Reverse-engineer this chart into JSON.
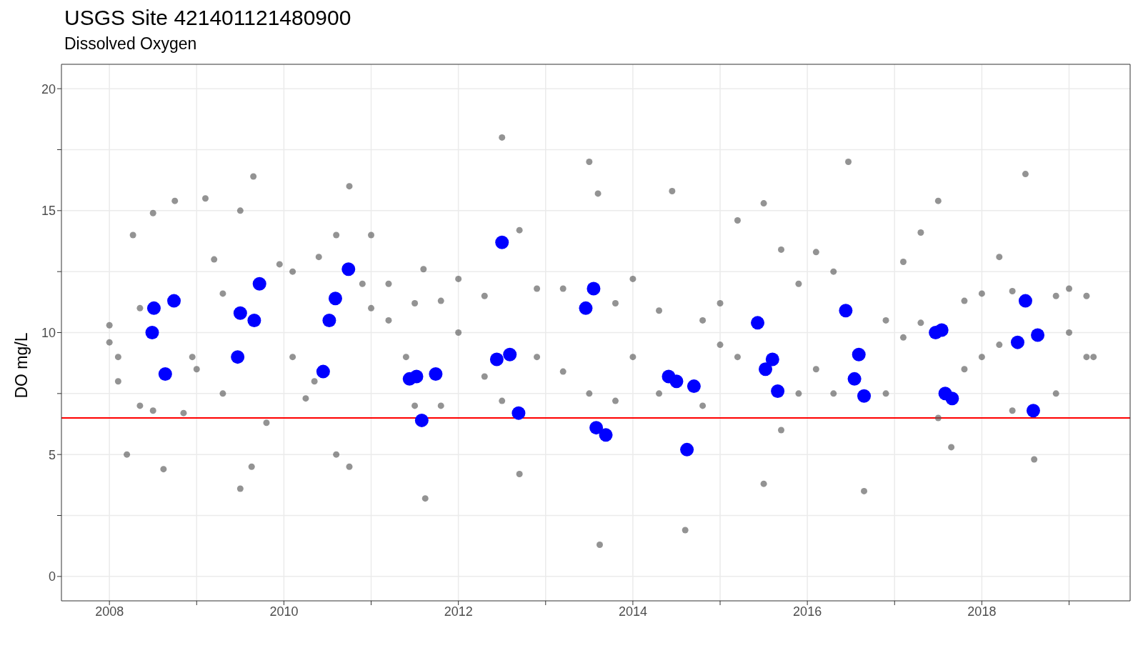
{
  "chart_data": {
    "type": "scatter",
    "title": "USGS Site 421401121480900",
    "subtitle": "Dissolved Oxygen",
    "ylabel": "DO mg/L",
    "xlim": [
      2007.45,
      2019.7
    ],
    "ylim": [
      -1,
      21
    ],
    "xticks": [
      2008,
      {
        "value": 2009,
        "label": null
      },
      2010,
      {
        "value": 2011,
        "label": null
      },
      2012,
      {
        "value": 2013,
        "label": null
      },
      2014,
      {
        "value": 2015,
        "label": null
      },
      2016,
      {
        "value": 2017,
        "label": null
      },
      2018,
      {
        "value": 2019,
        "label": null
      }
    ],
    "yticks": [
      0,
      {
        "value": 2.5,
        "label": null
      },
      5,
      {
        "value": 7.5,
        "label": null
      },
      10,
      {
        "value": 12.5,
        "label": null
      },
      15,
      {
        "value": 17.5,
        "label": null
      },
      20
    ],
    "grid": true,
    "marker": "circle",
    "ref_lines": [
      {
        "axis": "y",
        "value": 6.5,
        "color": "#ff0000"
      }
    ],
    "series": [
      {
        "color": "#595959",
        "x": [
          2008.0,
          2008.0,
          2008.1,
          2008.1,
          2008.2,
          2008.27,
          2008.35,
          2008.35,
          2008.5,
          2008.5,
          2008.62,
          2008.75,
          2008.85,
          2008.95,
          2009.0,
          2009.1,
          2009.2,
          2009.3,
          2009.3,
          2009.5,
          2009.5,
          2009.63,
          2009.65,
          2009.8,
          2009.95,
          2010.1,
          2010.1,
          2010.25,
          2010.4,
          2010.35,
          2010.6,
          2010.6,
          2010.75,
          2010.75,
          2010.9,
          2011.0,
          2011.0,
          2011.2,
          2011.2,
          2011.4,
          2011.5,
          2011.5,
          2011.6,
          2011.62,
          2011.8,
          2011.8,
          2012.0,
          2012.0,
          2012.3,
          2012.3,
          2012.5,
          2012.5,
          2012.7,
          2012.7,
          2012.9,
          2012.9,
          2013.2,
          2013.2,
          2013.5,
          2013.5,
          2013.62,
          2013.6,
          2013.8,
          2013.8,
          2014.0,
          2014.0,
          2014.3,
          2014.3,
          2014.45,
          2014.6,
          2014.8,
          2014.8,
          2015.0,
          2015.0,
          2015.2,
          2015.2,
          2015.5,
          2015.5,
          2015.7,
          2015.7,
          2015.9,
          2015.9,
          2016.1,
          2016.1,
          2016.3,
          2016.3,
          2016.47,
          2016.65,
          2016.9,
          2016.9,
          2017.1,
          2017.1,
          2017.3,
          2017.3,
          2017.5,
          2017.5,
          2017.65,
          2017.8,
          2017.8,
          2018.0,
          2018.0,
          2018.2,
          2018.2,
          2018.35,
          2018.35,
          2018.5,
          2018.6,
          2018.85,
          2018.85,
          2019.0,
          2019.0,
          2019.2,
          2019.2,
          2019.28
        ],
        "values": [
          10.3,
          9.6,
          9.0,
          8.0,
          5.0,
          14.0,
          11.0,
          7.0,
          14.9,
          6.8,
          4.4,
          15.4,
          6.7,
          9.0,
          8.5,
          15.5,
          13.0,
          11.6,
          7.5,
          15.0,
          3.6,
          4.5,
          16.4,
          6.3,
          12.8,
          12.5,
          9.0,
          7.3,
          13.1,
          8.0,
          14.0,
          5.0,
          16.0,
          4.5,
          12.0,
          14.0,
          11.0,
          12.0,
          10.5,
          9.0,
          11.2,
          7.0,
          12.6,
          3.2,
          11.3,
          7.0,
          12.2,
          10.0,
          11.5,
          8.2,
          18.0,
          7.2,
          14.2,
          4.2,
          11.8,
          9.0,
          11.8,
          8.4,
          17.0,
          7.5,
          1.3,
          15.7,
          11.2,
          7.2,
          12.2,
          9.0,
          10.9,
          7.5,
          15.8,
          1.9,
          10.5,
          7.0,
          11.2,
          9.5,
          14.6,
          9.0,
          15.3,
          3.8,
          13.4,
          6.0,
          12.0,
          7.5,
          13.3,
          8.5,
          12.5,
          7.5,
          17.0,
          3.5,
          10.5,
          7.5,
          12.9,
          9.8,
          14.1,
          10.4,
          15.4,
          6.5,
          5.3,
          11.3,
          8.5,
          11.6,
          9.0,
          13.1,
          9.5,
          11.7,
          6.8,
          16.5,
          4.8,
          11.5,
          7.5,
          11.8,
          10.0,
          11.5,
          9.0,
          9.0
        ]
      },
      {
        "color": "#0000ff",
        "x": [
          2008.51,
          2008.49,
          2008.64,
          2008.74,
          2009.47,
          2009.5,
          2009.66,
          2009.72,
          2010.45,
          2010.52,
          2010.59,
          2010.74,
          2011.44,
          2011.52,
          2011.58,
          2011.74,
          2012.5,
          2012.44,
          2012.59,
          2012.69,
          2013.46,
          2013.55,
          2013.58,
          2013.69,
          2014.41,
          2014.5,
          2014.7,
          2014.62,
          2015.43,
          2015.52,
          2015.6,
          2015.66,
          2016.44,
          2016.54,
          2016.59,
          2016.65,
          2017.47,
          2017.54,
          2017.58,
          2017.66,
          2018.41,
          2018.5,
          2018.64,
          2018.59
        ],
        "values": [
          11.0,
          10.0,
          8.3,
          11.3,
          9.0,
          10.8,
          10.5,
          12.0,
          8.4,
          10.5,
          11.4,
          12.6,
          8.1,
          8.2,
          6.4,
          8.3,
          13.7,
          8.9,
          9.1,
          6.7,
          11.0,
          11.8,
          6.1,
          5.8,
          8.2,
          8.0,
          7.8,
          5.2,
          10.4,
          8.5,
          8.9,
          7.6,
          10.9,
          8.1,
          9.1,
          7.4,
          10.0,
          10.1,
          7.5,
          7.3,
          9.6,
          11.3,
          9.9,
          6.8
        ]
      }
    ]
  }
}
